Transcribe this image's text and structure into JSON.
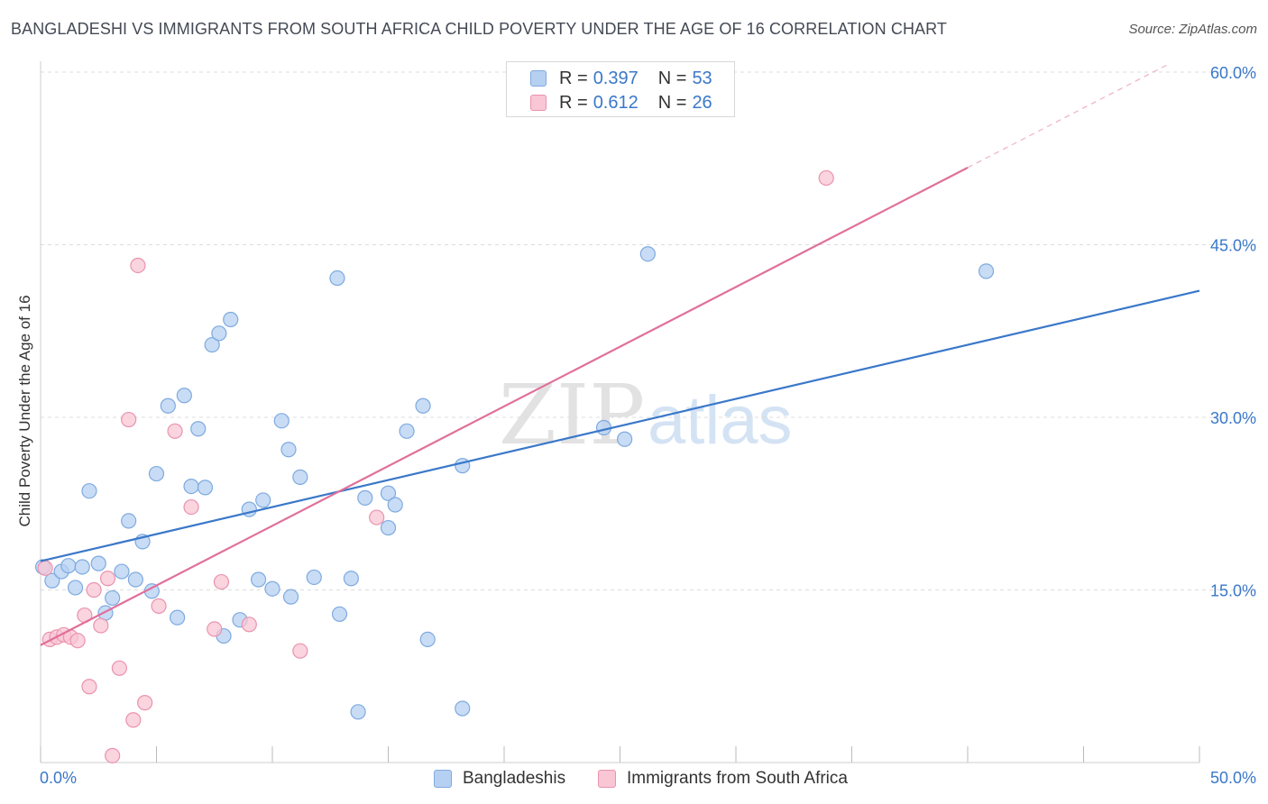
{
  "title": "BANGLADESHI VS IMMIGRANTS FROM SOUTH AFRICA CHILD POVERTY UNDER THE AGE OF 16 CORRELATION CHART",
  "source": "Source: ZipAtlas.com",
  "watermark": {
    "zip": "ZIP",
    "atlas": "atlas"
  },
  "colors": {
    "blue_fill": "#b6d0f2",
    "blue_stroke": "#7eaadf",
    "blue_line": "#3a78c9",
    "pink_fill": "#f8c6d4",
    "pink_stroke": "#ea93ae",
    "pink_line": "#e0709a",
    "axis_label": "#3a78c9",
    "grid": "#dddddd"
  },
  "legend": {
    "rows": [
      {
        "r_label": "R =",
        "r_value": "0.397",
        "n_label": "N =",
        "n_value": "53"
      },
      {
        "r_label": "R =",
        "r_value": "0.612",
        "n_label": "N =",
        "n_value": "26"
      }
    ]
  },
  "bottom_legend": [
    "Bangladeshis",
    "Immigrants from South Africa"
  ],
  "chart_data": {
    "type": "scatter",
    "title": "BANGLADESHI VS IMMIGRANTS FROM SOUTH AFRICA CHILD POVERTY UNDER THE AGE OF 16 CORRELATION CHART",
    "xlabel": "",
    "ylabel": "Child Poverty Under the Age of 16",
    "xlim": [
      0,
      50
    ],
    "ylim": [
      0,
      60
    ],
    "x_tick_labels": [
      "0.0%",
      "50.0%"
    ],
    "y_ticks": [
      15,
      30,
      45,
      60
    ],
    "y_tick_labels": [
      "15.0%",
      "30.0%",
      "45.0%",
      "60.0%"
    ],
    "grid": true,
    "legend_position": "top-center",
    "series": [
      {
        "name": "Bangladeshis",
        "r": 0.397,
        "n": 53,
        "trend": {
          "x0": 0,
          "y0": 17.5,
          "x1": 50,
          "y1": 41.0,
          "dashed_to": 50
        },
        "points": [
          [
            0.1,
            17.0
          ],
          [
            0.5,
            15.8
          ],
          [
            0.9,
            16.6
          ],
          [
            1.2,
            17.1
          ],
          [
            1.5,
            15.2
          ],
          [
            1.8,
            17.0
          ],
          [
            2.1,
            23.6
          ],
          [
            2.5,
            17.3
          ],
          [
            2.8,
            13.0
          ],
          [
            3.1,
            14.3
          ],
          [
            3.5,
            16.6
          ],
          [
            3.8,
            21.0
          ],
          [
            4.1,
            15.9
          ],
          [
            4.4,
            19.2
          ],
          [
            4.8,
            14.9
          ],
          [
            5.0,
            25.1
          ],
          [
            5.5,
            31.0
          ],
          [
            5.9,
            12.6
          ],
          [
            6.2,
            31.9
          ],
          [
            6.5,
            24.0
          ],
          [
            6.8,
            29.0
          ],
          [
            7.1,
            23.9
          ],
          [
            7.4,
            36.3
          ],
          [
            7.7,
            37.3
          ],
          [
            7.9,
            11.0
          ],
          [
            8.2,
            38.5
          ],
          [
            8.6,
            12.4
          ],
          [
            9.0,
            22.0
          ],
          [
            9.4,
            15.9
          ],
          [
            9.6,
            22.8
          ],
          [
            10.0,
            15.1
          ],
          [
            10.4,
            29.7
          ],
          [
            10.7,
            27.2
          ],
          [
            10.8,
            14.4
          ],
          [
            11.2,
            24.8
          ],
          [
            11.8,
            16.1
          ],
          [
            12.8,
            42.1
          ],
          [
            12.9,
            12.9
          ],
          [
            13.4,
            16.0
          ],
          [
            13.7,
            4.4
          ],
          [
            14.0,
            23.0
          ],
          [
            15.0,
            23.4
          ],
          [
            15.0,
            20.4
          ],
          [
            15.3,
            22.4
          ],
          [
            15.8,
            28.8
          ],
          [
            16.5,
            31.0
          ],
          [
            16.7,
            10.7
          ],
          [
            18.2,
            25.8
          ],
          [
            18.2,
            4.7
          ],
          [
            24.3,
            29.1
          ],
          [
            25.2,
            28.1
          ],
          [
            26.2,
            44.2
          ],
          [
            40.8,
            42.7
          ]
        ]
      },
      {
        "name": "Immigrants from South Africa",
        "r": 0.612,
        "n": 26,
        "trend": {
          "x0": 0,
          "y0": 10.2,
          "x1": 40,
          "y1": 51.7,
          "dashed_to": 48.7
        },
        "points": [
          [
            0.2,
            16.9
          ],
          [
            0.4,
            10.7
          ],
          [
            0.7,
            10.9
          ],
          [
            1.0,
            11.1
          ],
          [
            1.3,
            10.9
          ],
          [
            1.6,
            10.6
          ],
          [
            1.9,
            12.8
          ],
          [
            2.1,
            6.6
          ],
          [
            2.3,
            15.0
          ],
          [
            2.6,
            11.9
          ],
          [
            2.9,
            16.0
          ],
          [
            3.4,
            8.2
          ],
          [
            3.8,
            29.8
          ],
          [
            4.0,
            3.7
          ],
          [
            4.2,
            43.2
          ],
          [
            4.5,
            5.2
          ],
          [
            5.1,
            13.6
          ],
          [
            5.8,
            28.8
          ],
          [
            6.5,
            22.2
          ],
          [
            7.5,
            11.6
          ],
          [
            7.8,
            15.7
          ],
          [
            9.0,
            12.0
          ],
          [
            11.2,
            9.7
          ],
          [
            14.5,
            21.3
          ],
          [
            33.9,
            50.8
          ],
          [
            3.1,
            0.6
          ]
        ]
      }
    ]
  }
}
